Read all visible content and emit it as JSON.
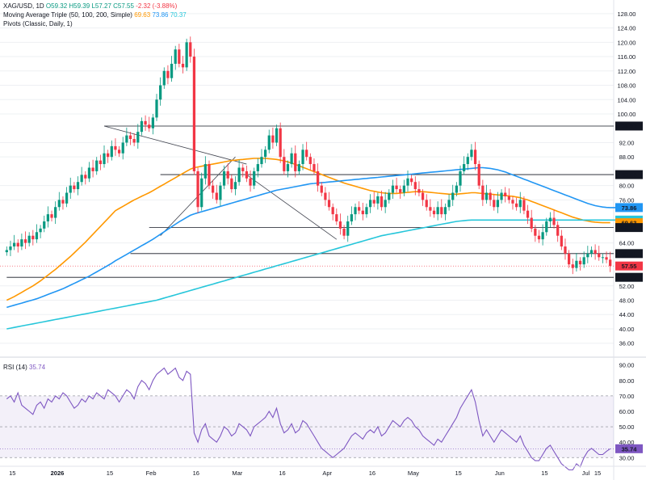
{
  "legend": {
    "symbol": "XAG/USD, 1D",
    "ohlc": [
      "O59.32",
      "H59.39",
      "L57.27",
      "C57.55",
      "-2.32 (-3.88%)"
    ],
    "ma_title": "Moving Average Triple (50, 100, 200, Simple)",
    "ma_values": [
      "69.63",
      "73.86",
      "70.37"
    ],
    "pivots": "Pivots (Classic, Daily, 1)",
    "rsi_title": "RSI (14)",
    "rsi_value": "35.74"
  },
  "colors": {
    "up": "#089981",
    "down": "#f23645",
    "ma50": "#ff9800",
    "ma100": "#2196f3",
    "ma200": "#26c6da",
    "rsi": "#7e57c2",
    "grid": "#eef0f3",
    "text": "#131722"
  },
  "x_labels": [
    "15",
    "2026",
    "15",
    "Feb",
    "16",
    "Mar",
    "16",
    "Apr",
    "16",
    "May",
    "15",
    "Jun",
    "15",
    "Jul",
    "15"
  ],
  "chart_data": [
    {
      "type": "candlestick",
      "yaxis_ticks": [
        "128.00",
        "124.00",
        "120.00",
        "116.00",
        "112.00",
        "108.00",
        "104.00",
        "100.00",
        "92.00",
        "88.00",
        "80.00",
        "76.00",
        "64.00",
        "52.00",
        "48.00",
        "44.00",
        "40.00",
        "36.00"
      ],
      "ylim": [
        33,
        130
      ],
      "price_flags": [
        {
          "value": 96.62,
          "label": "96.62",
          "color": "#131722"
        },
        {
          "value": 83.06,
          "label": "83.06",
          "color": "#131722"
        },
        {
          "value": 73.86,
          "label": "73.86",
          "color": "#2196f3"
        },
        {
          "value": 70.37,
          "label": "70.37",
          "color": "#26c6da"
        },
        {
          "value": 69.63,
          "label": "69.63",
          "color": "#ff9800"
        },
        {
          "value": 68.28,
          "label": "68.28",
          "color": "#131722"
        },
        {
          "value": 61.01,
          "label": "61.01",
          "color": "#131722"
        },
        {
          "value": 57.55,
          "label": "57.55",
          "color": "#f23645"
        },
        {
          "value": 54.39,
          "label": "54.39",
          "color": "#131722"
        }
      ],
      "close": [
        62,
        63,
        64,
        63,
        65,
        64,
        66,
        65,
        67,
        68,
        70,
        72,
        71,
        74,
        76,
        75,
        78,
        80,
        79,
        81,
        83,
        82,
        85,
        84,
        87,
        86,
        89,
        88,
        91,
        90,
        89,
        92,
        94,
        93,
        92,
        95,
        98,
        97,
        96,
        99,
        104,
        108,
        112,
        110,
        114,
        118,
        114,
        113,
        120,
        116,
        84,
        74,
        82,
        86,
        80,
        78,
        76,
        80,
        84,
        82,
        79,
        81,
        85,
        84,
        82,
        80,
        84,
        86,
        88,
        90,
        94,
        92,
        96,
        88,
        84,
        86,
        89,
        84,
        86,
        90,
        88,
        86,
        84,
        80,
        78,
        76,
        74,
        72,
        70,
        68,
        66,
        70,
        72,
        74,
        73,
        72,
        74,
        76,
        75,
        77,
        74,
        76,
        78,
        80,
        79,
        78,
        80,
        82,
        81,
        79,
        78,
        76,
        74,
        73,
        72,
        74,
        72,
        74,
        76,
        78,
        80,
        84,
        86,
        88,
        90,
        86,
        80,
        76,
        78,
        76,
        74,
        76,
        78,
        77,
        76,
        75,
        74,
        76,
        73,
        71,
        68,
        66,
        65,
        67,
        70,
        71,
        69,
        66,
        63,
        61,
        58,
        57,
        59,
        58,
        60,
        61,
        62,
        61,
        60,
        60,
        59.32,
        57.55
      ],
      "series": [
        {
          "name": "MA 50",
          "values": [
            48,
            48.5,
            49,
            49.6,
            50.2,
            50.8,
            51.4,
            52,
            52.7,
            53.4,
            54.2,
            55,
            55.8,
            56.6,
            57.5,
            58.4,
            59.3,
            60.2,
            61.2,
            62.2,
            63.2,
            64.2,
            65.3,
            66.4,
            67.5,
            68.6,
            69.7,
            70.8,
            71.9,
            73,
            73.6,
            74.2,
            74.8,
            75.4,
            76,
            76.5,
            77,
            77.5,
            78,
            78.6,
            79.2,
            79.8,
            80.4,
            81,
            81.6,
            82.2,
            82.8,
            83.4,
            84,
            84.6,
            85,
            85.2,
            85.4,
            85.6,
            85.8,
            86,
            86.2,
            86.4,
            86.6,
            86.8,
            87,
            87.1,
            87.2,
            87.3,
            87.4,
            87.5,
            87.6,
            87.6,
            87.6,
            87.6,
            87.5,
            87.4,
            87.3,
            87.1,
            86.9,
            86.6,
            86.3,
            85.9,
            85.5,
            85.1,
            84.7,
            84.3,
            83.9,
            83.5,
            83.1,
            82.7,
            82.3,
            81.9,
            81.5,
            81.1,
            80.7,
            80.4,
            80.1,
            79.8,
            79.5,
            79.2,
            78.9,
            78.6,
            78.4,
            78.2,
            78,
            77.9,
            77.8,
            77.8,
            77.8,
            77.9,
            78,
            78.1,
            78.2,
            78.3,
            78.3,
            78.3,
            78.2,
            78.1,
            78,
            77.9,
            77.8,
            77.7,
            77.6,
            77.6,
            77.6,
            77.7,
            77.8,
            77.9,
            78,
            78,
            77.9,
            77.8,
            77.7,
            77.6,
            77.5,
            77.4,
            77.3,
            77.2,
            77.1,
            77,
            76.8,
            76.6,
            76.3,
            76,
            75.6,
            75.2,
            74.8,
            74.4,
            74,
            73.6,
            73.2,
            72.8,
            72.4,
            72,
            71.6,
            71.2,
            70.9,
            70.6,
            70.3,
            70.1,
            69.9,
            69.8,
            69.7,
            69.63,
            69.63,
            69.63
          ]
        },
        {
          "name": "MA 100",
          "values": [
            46,
            46.3,
            46.6,
            46.9,
            47.2,
            47.5,
            47.8,
            48.1,
            48.4,
            48.8,
            49.2,
            49.6,
            50,
            50.4,
            50.8,
            51.2,
            51.7,
            52.2,
            52.7,
            53.2,
            53.7,
            54.2,
            54.7,
            55.3,
            55.9,
            56.5,
            57.1,
            57.7,
            58.3,
            59,
            59.6,
            60.2,
            60.8,
            61.4,
            62,
            62.6,
            63.2,
            63.8,
            64.4,
            65,
            65.7,
            66.4,
            67.1,
            67.8,
            68.5,
            69.2,
            69.9,
            70.5,
            71.1,
            71.7,
            72.1,
            72.4,
            72.7,
            73,
            73.3,
            73.6,
            73.9,
            74.2,
            74.5,
            74.8,
            75.1,
            75.4,
            75.7,
            76,
            76.3,
            76.6,
            76.9,
            77.2,
            77.5,
            77.8,
            78.1,
            78.4,
            78.7,
            78.9,
            79.1,
            79.3,
            79.5,
            79.7,
            79.9,
            80.1,
            80.3,
            80.5,
            80.6,
            80.7,
            80.8,
            80.9,
            81,
            81.1,
            81.2,
            81.3,
            81.4,
            81.5,
            81.6,
            81.7,
            81.8,
            81.9,
            82,
            82.1,
            82.2,
            82.3,
            82.4,
            82.5,
            82.6,
            82.7,
            82.8,
            82.9,
            83,
            83.1,
            83.2,
            83.3,
            83.4,
            83.5,
            83.6,
            83.7,
            83.8,
            83.9,
            84,
            84.1,
            84.2,
            84.3,
            84.4,
            84.5,
            84.6,
            84.7,
            84.8,
            84.9,
            85,
            85,
            84.9,
            84.8,
            84.6,
            84.4,
            84.1,
            83.8,
            83.4,
            83,
            82.6,
            82.2,
            81.8,
            81.4,
            81,
            80.6,
            80.2,
            79.8,
            79.4,
            79,
            78.6,
            78.2,
            77.8,
            77.4,
            77,
            76.6,
            76.2,
            75.8,
            75.4,
            75,
            74.7,
            74.4,
            74.2,
            74,
            73.9,
            73.86,
            73.86,
            73.86
          ]
        },
        {
          "name": "MA 200",
          "values": [
            40,
            40.2,
            40.4,
            40.6,
            40.8,
            41,
            41.2,
            41.4,
            41.6,
            41.8,
            42,
            42.2,
            42.4,
            42.6,
            42.8,
            43,
            43.2,
            43.4,
            43.6,
            43.8,
            44,
            44.2,
            44.4,
            44.6,
            44.8,
            45,
            45.2,
            45.4,
            45.6,
            45.8,
            46,
            46.2,
            46.4,
            46.6,
            46.8,
            47,
            47.2,
            47.4,
            47.6,
            47.8,
            48,
            48.3,
            48.6,
            48.9,
            49.2,
            49.5,
            49.8,
            50.1,
            50.4,
            50.7,
            51,
            51.3,
            51.6,
            51.9,
            52.2,
            52.5,
            52.8,
            53.1,
            53.4,
            53.7,
            54,
            54.3,
            54.6,
            54.9,
            55.2,
            55.5,
            55.8,
            56.1,
            56.4,
            56.7,
            57,
            57.3,
            57.6,
            57.9,
            58.2,
            58.5,
            58.8,
            59.1,
            59.4,
            59.7,
            60,
            60.3,
            60.6,
            60.9,
            61.2,
            61.5,
            61.8,
            62.1,
            62.4,
            62.7,
            63,
            63.3,
            63.6,
            63.9,
            64.2,
            64.5,
            64.8,
            65.1,
            65.4,
            65.7,
            66,
            66.2,
            66.4,
            66.6,
            66.8,
            67,
            67.2,
            67.4,
            67.6,
            67.8,
            68,
            68.2,
            68.4,
            68.6,
            68.8,
            69,
            69.2,
            69.4,
            69.6,
            69.8,
            70,
            70.1,
            70.2,
            70.3,
            70.37,
            70.37,
            70.37,
            70.37,
            70.37,
            70.37,
            70.37,
            70.37,
            70.37,
            70.37,
            70.37,
            70.37,
            70.37,
            70.37,
            70.37,
            70.37,
            70.37,
            70.37,
            70.37,
            70.37,
            70.37,
            70.37,
            70.37,
            70.37,
            70.37,
            70.37,
            70.37,
            70.37,
            70.37,
            70.37,
            70.37,
            70.37,
            70.37,
            70.37,
            70.37,
            70.37,
            70.37,
            70.37,
            70.37,
            70.37,
            70.37
          ]
        }
      ],
      "trendlines": [
        {
          "from": [
            26,
            96.62
          ],
          "to": [
            64,
            86
          ]
        },
        {
          "from": [
            41,
            66
          ],
          "to": [
            61,
            88
          ]
        },
        {
          "from": [
            64,
            83
          ],
          "to": [
            88,
            65
          ]
        }
      ]
    },
    {
      "type": "line",
      "name": "RSI (14)",
      "yaxis_ticks": [
        "90.00",
        "80.00",
        "70.00",
        "60.00",
        "50.00",
        "40.00",
        "30.00"
      ],
      "ylim": [
        27,
        93
      ],
      "bands": [
        70,
        50,
        30
      ],
      "values": [
        68,
        70,
        66,
        72,
        64,
        62,
        60,
        58,
        64,
        66,
        62,
        68,
        66,
        70,
        68,
        72,
        70,
        66,
        62,
        64,
        68,
        66,
        70,
        68,
        72,
        70,
        68,
        74,
        72,
        70,
        66,
        70,
        74,
        72,
        68,
        76,
        80,
        78,
        74,
        80,
        84,
        86,
        88,
        84,
        86,
        88,
        82,
        80,
        86,
        84,
        46,
        40,
        48,
        52,
        44,
        42,
        40,
        44,
        50,
        48,
        44,
        46,
        52,
        50,
        48,
        44,
        50,
        52,
        54,
        56,
        60,
        56,
        62,
        52,
        46,
        48,
        52,
        46,
        48,
        54,
        52,
        48,
        44,
        40,
        36,
        34,
        32,
        30,
        32,
        34,
        36,
        40,
        44,
        46,
        44,
        42,
        46,
        48,
        46,
        50,
        44,
        46,
        50,
        54,
        52,
        50,
        54,
        56,
        54,
        50,
        48,
        44,
        42,
        40,
        38,
        42,
        40,
        44,
        48,
        52,
        56,
        62,
        66,
        70,
        74,
        66,
        54,
        44,
        48,
        44,
        40,
        44,
        48,
        46,
        44,
        42,
        40,
        44,
        38,
        34,
        30,
        28,
        28,
        32,
        36,
        38,
        34,
        30,
        26,
        24,
        22,
        22,
        26,
        24,
        30,
        34,
        36,
        34,
        32,
        32,
        34,
        35.74
      ]
    }
  ]
}
